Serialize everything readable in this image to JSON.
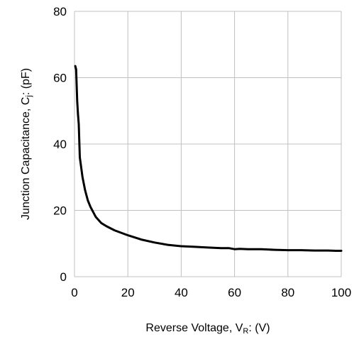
{
  "chart_data": {
    "type": "line",
    "title": "",
    "xlabel": {
      "main": "Reverse Voltage, V",
      "sub": "R",
      "tail": ": (V)"
    },
    "ylabel": {
      "main": "Junction Capacitance, C",
      "sub": "j",
      "tail": ": (pF)"
    },
    "xlim": [
      0,
      100
    ],
    "ylim": [
      0,
      80
    ],
    "xticks": [
      "0",
      "20",
      "40",
      "60",
      "80",
      "100"
    ],
    "yticks": [
      "0",
      "20",
      "40",
      "60",
      "80"
    ],
    "grid": true,
    "legend": "none",
    "line_color": "#000000",
    "grid_color": "#c0c0c0",
    "series": [
      {
        "x": [
          0.3,
          0.6,
          0.8,
          1.0,
          1.3,
          1.6,
          2,
          3,
          4,
          5,
          6,
          8,
          10,
          12,
          15,
          20,
          25,
          30,
          35,
          40,
          45,
          50,
          55,
          58,
          60,
          62,
          65,
          70,
          75,
          80,
          85,
          90,
          95,
          98,
          100
        ],
        "y": [
          63.5,
          62.5,
          58,
          53,
          49,
          46,
          36,
          30,
          26,
          23,
          21,
          18,
          16.2,
          15.2,
          14,
          12.5,
          11.2,
          10.3,
          9.6,
          9.2,
          9.0,
          8.8,
          8.6,
          8.6,
          8.3,
          8.4,
          8.3,
          8.3,
          8.1,
          8.0,
          8.0,
          7.9,
          7.9,
          7.8,
          7.8
        ]
      }
    ]
  }
}
